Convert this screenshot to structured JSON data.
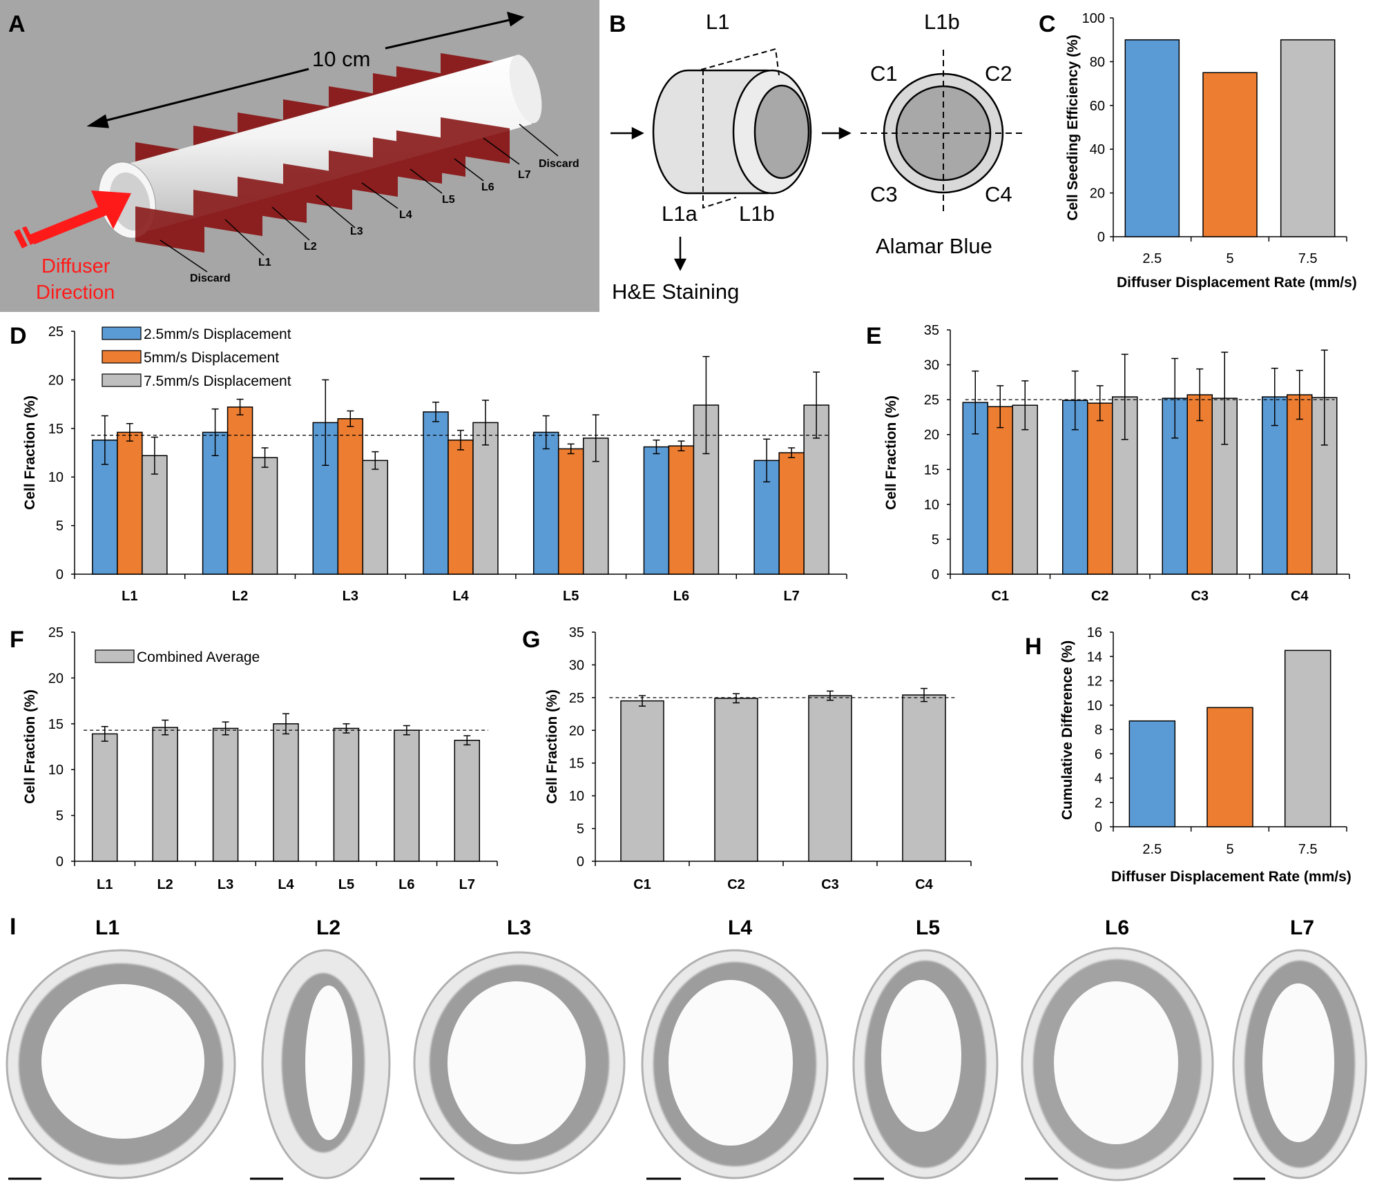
{
  "panel_labels": {
    "A": "A",
    "B": "B",
    "C": "C",
    "D": "D",
    "E": "E",
    "F": "F",
    "G": "G",
    "H": "H",
    "I": "I"
  },
  "colors": {
    "blue": "#5b9bd5",
    "orange": "#ed7d31",
    "gray": "#bfbfbf",
    "scaffold_fill": "#e8e8e8",
    "section": "#8b1e1e",
    "background_a": "#a6a6a6"
  },
  "panel_a": {
    "length": "10 cm",
    "diffuser_line1": "Diffuser",
    "diffuser_line2": "Direction",
    "discard_left": "Discard",
    "discard_right": "Discard",
    "sections": [
      "L1",
      "L2",
      "L3",
      "L4",
      "L5",
      "L6",
      "L7"
    ]
  },
  "panel_b": {
    "l1": "L1",
    "l1a": "L1a",
    "l1b": "L1b",
    "l1b_top": "L1b",
    "c1": "C1",
    "c2": "C2",
    "c3": "C3",
    "c4": "C4",
    "alamar": "Alamar Blue",
    "he": "H&E Staining"
  },
  "panel_i": {
    "labels": [
      "L1",
      "L2",
      "L3",
      "L4",
      "L5",
      "L6",
      "L7"
    ]
  },
  "chart_data": [
    {
      "id": "C",
      "type": "bar",
      "categories": [
        "2.5",
        "5",
        "7.5"
      ],
      "values": [
        90,
        75,
        90
      ],
      "bar_colors": [
        "#5b9bd5",
        "#ed7d31",
        "#bfbfbf"
      ],
      "xlabel": "Diffuser Displacement Rate (mm/s)",
      "ylabel": "Cell Seeding Efficiency (%)",
      "ylim": [
        0,
        100
      ],
      "yticks": [
        0,
        20,
        40,
        60,
        80,
        100
      ],
      "grid": false
    },
    {
      "id": "D",
      "type": "bar",
      "categories": [
        "L1",
        "L2",
        "L3",
        "L4",
        "L5",
        "L6",
        "L7"
      ],
      "series": [
        {
          "name": "2.5mm/s Displacement",
          "color": "#5b9bd5",
          "values": [
            13.8,
            14.6,
            15.6,
            16.7,
            14.6,
            13.1,
            11.7
          ],
          "errors": [
            2.5,
            2.4,
            4.4,
            1.0,
            1.7,
            0.7,
            2.2
          ]
        },
        {
          "name": "5mm/s Displacement",
          "color": "#ed7d31",
          "values": [
            14.6,
            17.2,
            16.0,
            13.8,
            12.9,
            13.2,
            12.5
          ],
          "errors": [
            0.9,
            0.8,
            0.8,
            1.0,
            0.5,
            0.5,
            0.5
          ]
        },
        {
          "name": "7.5mm/s Displacement",
          "color": "#bfbfbf",
          "values": [
            12.2,
            12.0,
            11.7,
            15.6,
            14.0,
            17.4,
            17.4
          ],
          "errors": [
            1.9,
            1.0,
            0.9,
            2.3,
            2.4,
            5.0,
            3.4
          ]
        }
      ],
      "reference_line": 14.3,
      "ylabel": "Cell Fraction (%)",
      "xlabel": "",
      "ylim": [
        0,
        25
      ],
      "yticks": [
        0,
        5,
        10,
        15,
        20,
        25
      ],
      "legend": "top-left",
      "grid": false
    },
    {
      "id": "E",
      "type": "bar",
      "categories": [
        "C1",
        "C2",
        "C3",
        "C4"
      ],
      "series": [
        {
          "name": "2.5mm/s Displacement",
          "color": "#5b9bd5",
          "values": [
            24.6,
            24.9,
            25.2,
            25.4
          ],
          "errors": [
            4.5,
            4.2,
            5.7,
            4.1
          ]
        },
        {
          "name": "5mm/s Displacement",
          "color": "#ed7d31",
          "values": [
            24.0,
            24.5,
            25.7,
            25.7
          ],
          "errors": [
            3.0,
            2.5,
            3.7,
            3.5
          ]
        },
        {
          "name": "7.5mm/s Displacement",
          "color": "#bfbfbf",
          "values": [
            24.2,
            25.4,
            25.2,
            25.3
          ],
          "errors": [
            3.5,
            6.1,
            6.6,
            6.8
          ]
        }
      ],
      "reference_line": 25,
      "ylabel": "Cell Fraction (%)",
      "xlabel": "",
      "ylim": [
        0,
        35
      ],
      "yticks": [
        0,
        5,
        10,
        15,
        20,
        25,
        30,
        35
      ],
      "grid": false
    },
    {
      "id": "F",
      "type": "bar",
      "categories": [
        "L1",
        "L2",
        "L3",
        "L4",
        "L5",
        "L6",
        "L7"
      ],
      "series": [
        {
          "name": "Combined Average",
          "color": "#bfbfbf",
          "values": [
            13.9,
            14.6,
            14.5,
            15.0,
            14.5,
            14.3,
            13.2
          ],
          "errors": [
            0.8,
            0.8,
            0.7,
            1.1,
            0.5,
            0.5,
            0.5
          ]
        }
      ],
      "reference_line": 14.3,
      "ylabel": "Cell Fraction (%)",
      "xlabel": "",
      "ylim": [
        0,
        25
      ],
      "yticks": [
        0,
        5,
        10,
        15,
        20,
        25
      ],
      "legend": "top-left",
      "grid": false
    },
    {
      "id": "G",
      "type": "bar",
      "categories": [
        "C1",
        "C2",
        "C3",
        "C4"
      ],
      "series": [
        {
          "color": "#bfbfbf",
          "values": [
            24.5,
            24.9,
            25.3,
            25.4
          ],
          "errors": [
            0.8,
            0.7,
            0.7,
            1.0
          ]
        }
      ],
      "reference_line": 25,
      "ylabel": "Cell Fraction (%)",
      "xlabel": "",
      "ylim": [
        0,
        35
      ],
      "yticks": [
        0,
        5,
        10,
        15,
        20,
        25,
        30,
        35
      ],
      "grid": false
    },
    {
      "id": "H",
      "type": "bar",
      "categories": [
        "2.5",
        "5",
        "7.5"
      ],
      "values": [
        8.7,
        9.8,
        14.5
      ],
      "bar_colors": [
        "#5b9bd5",
        "#ed7d31",
        "#bfbfbf"
      ],
      "xlabel": "Diffuser Displacement Rate (mm/s)",
      "ylabel": "Cumulative Difference (%)",
      "ylim": [
        0,
        16
      ],
      "yticks": [
        0,
        2,
        4,
        6,
        8,
        10,
        12,
        14,
        16
      ],
      "grid": false
    }
  ]
}
